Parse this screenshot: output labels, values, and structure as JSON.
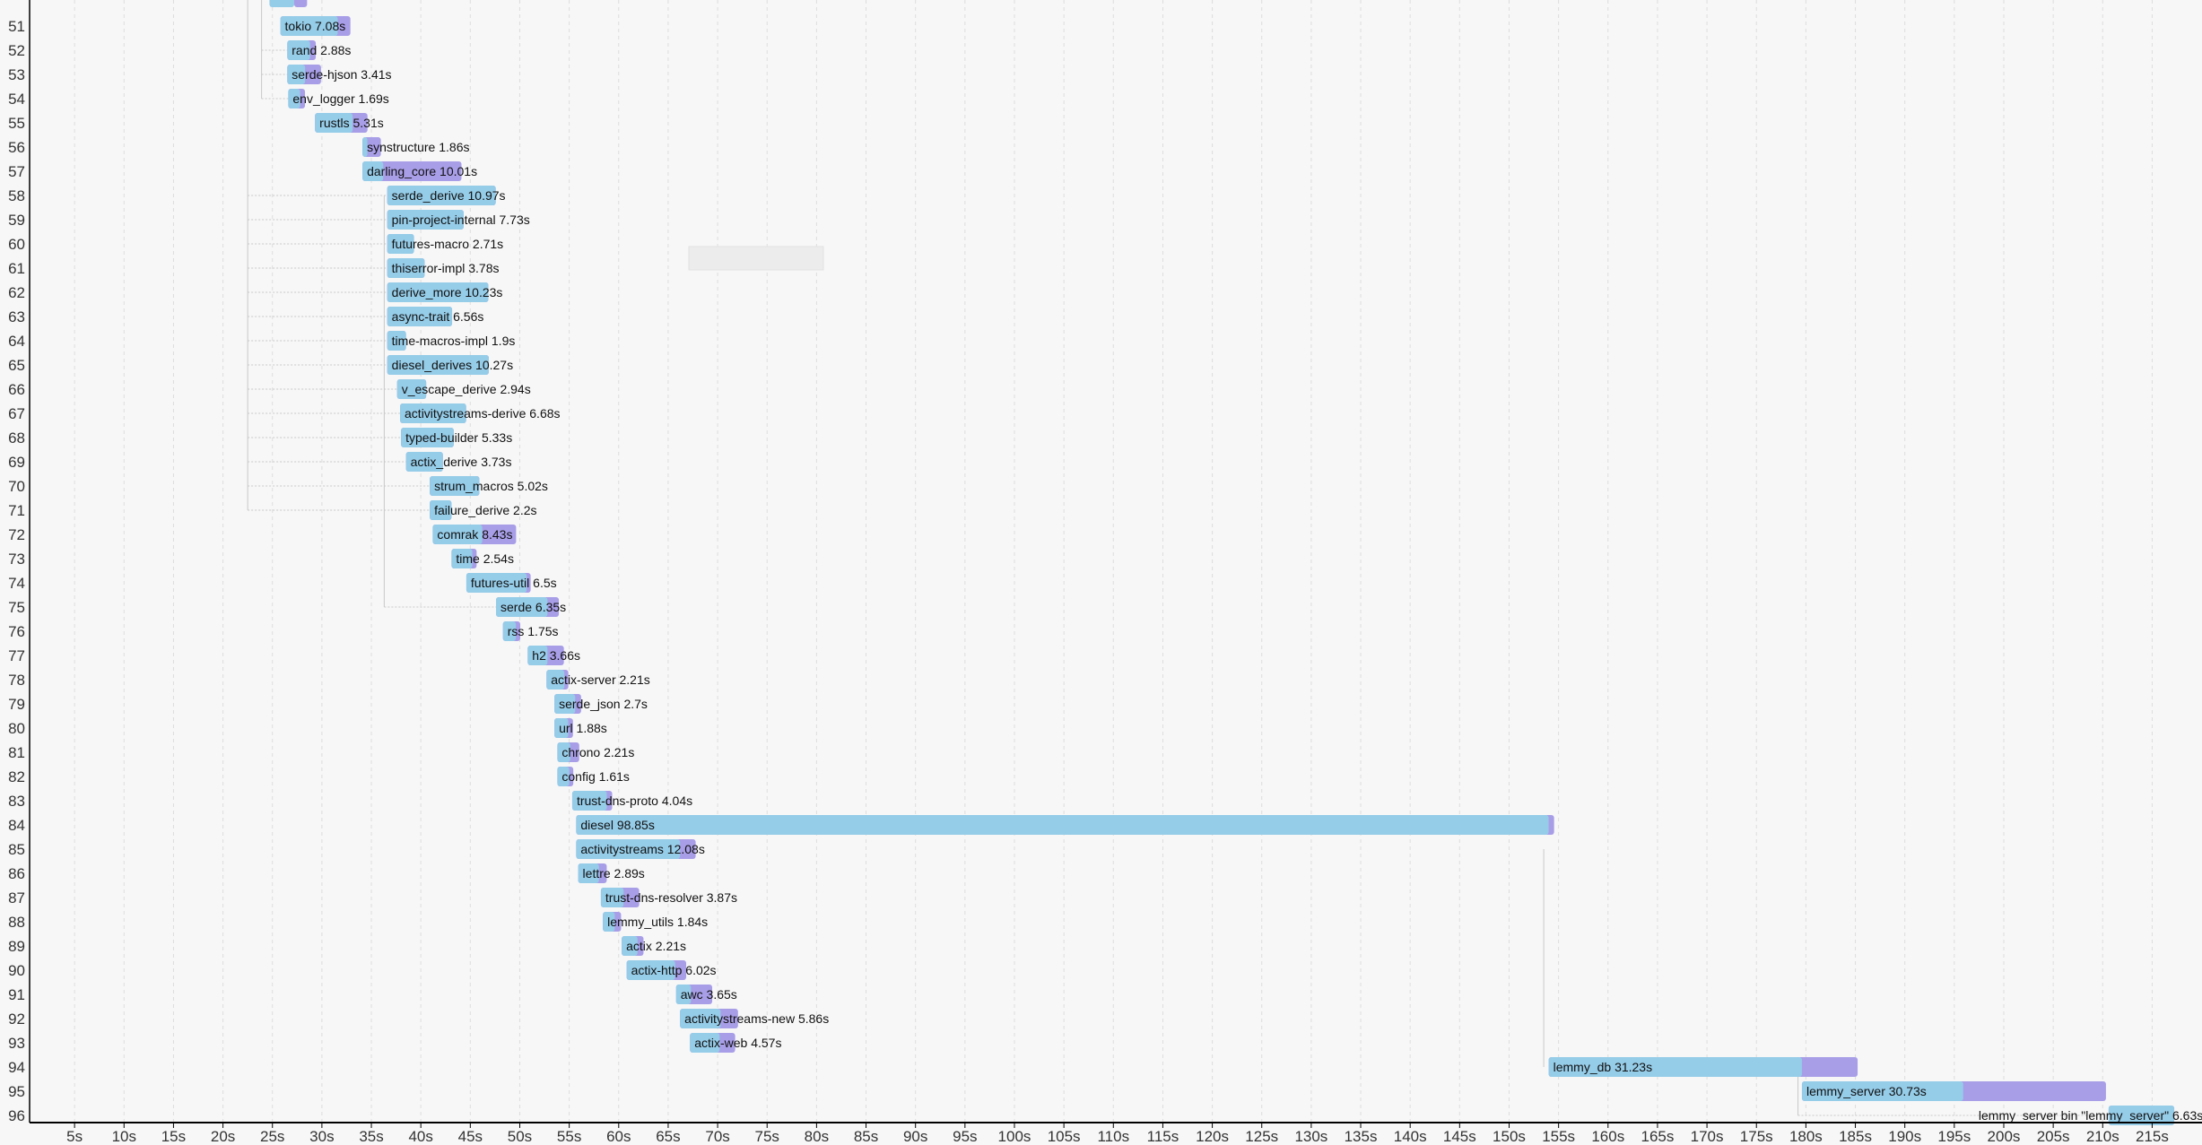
{
  "chart_data": {
    "type": "timeline",
    "title": "",
    "xlabel": "",
    "ylabel": "",
    "x_unit": "s",
    "xlim": [
      0,
      219
    ],
    "grid": true,
    "colors": {
      "codegen": "#95cce8",
      "frontend": "#a89ee8",
      "gridline": "#dddddd",
      "axis": "#000000",
      "dependency_line": "#c8c8c8"
    },
    "x_ticks": [
      5,
      10,
      15,
      20,
      25,
      30,
      35,
      40,
      45,
      50,
      55,
      60,
      65,
      70,
      75,
      80,
      85,
      90,
      95,
      100,
      105,
      110,
      115,
      120,
      125,
      130,
      135,
      140,
      145,
      150,
      155,
      160,
      165,
      170,
      175,
      180,
      185,
      190,
      195,
      200,
      205,
      210,
      215
    ],
    "x_tick_labels": [
      "5s",
      "10s",
      "15s",
      "20s",
      "25s",
      "30s",
      "35s",
      "40s",
      "45s",
      "50s",
      "55s",
      "60s",
      "65s",
      "70s",
      "75s",
      "80s",
      "85s",
      "90s",
      "95s",
      "100s",
      "105s",
      "110s",
      "115s",
      "120s",
      "125s",
      "130s",
      "135s",
      "140s",
      "145s",
      "150s",
      "155s",
      "160s",
      "165s",
      "170s",
      "175s",
      "180s",
      "185s",
      "190s",
      "195s",
      "200s",
      "205s",
      "210s",
      "215s"
    ],
    "partial_top_row": {
      "start": 24.7,
      "codegen_split": 27.2,
      "end": 28.5,
      "duration": 3.8
    },
    "units": [
      {
        "row": "51",
        "name": "tokio",
        "duration": 7.08,
        "label": "tokio 7.08s",
        "start": 25.8,
        "codegen_split": 31.6
      },
      {
        "row": "52",
        "name": "rand",
        "duration": 2.88,
        "label": "rand 2.88s",
        "start": 26.5,
        "codegen_split": 28.8
      },
      {
        "row": "53",
        "name": "serde-hjson",
        "duration": 3.41,
        "label": "serde-hjson 3.41s",
        "start": 26.5,
        "codegen_split": 28.3
      },
      {
        "row": "54",
        "name": "env_logger",
        "duration": 1.69,
        "label": "env_logger 1.69s",
        "start": 26.6,
        "codegen_split": 27.8
      },
      {
        "row": "55",
        "name": "rustls",
        "duration": 5.31,
        "label": "rustls 5.31s",
        "start": 29.3,
        "codegen_split": 33.1
      },
      {
        "row": "56",
        "name": "synstructure",
        "duration": 1.86,
        "label": "synstructure 1.86s",
        "start": 34.1,
        "codegen_split": 34.6
      },
      {
        "row": "57",
        "name": "darling_core",
        "duration": 10.01,
        "label": "darling_core 10.01s",
        "start": 34.1,
        "codegen_split": 36.2
      },
      {
        "row": "58",
        "name": "serde_derive",
        "duration": 10.97,
        "label": "serde_derive 10.97s",
        "start": 36.6,
        "codegen_split": 47.57
      },
      {
        "row": "59",
        "name": "pin-project-internal",
        "duration": 7.73,
        "label": "pin-project-internal 7.73s",
        "start": 36.6,
        "codegen_split": 44.33
      },
      {
        "row": "60",
        "name": "futures-macro",
        "duration": 2.71,
        "label": "futures-macro 2.71s",
        "start": 36.6,
        "codegen_split": 39.31
      },
      {
        "row": "61",
        "name": "thiserror-impl",
        "duration": 3.78,
        "label": "thiserror-impl 3.78s",
        "start": 36.6,
        "codegen_split": 40.38
      },
      {
        "row": "62",
        "name": "derive_more",
        "duration": 10.23,
        "label": "derive_more 10.23s",
        "start": 36.6,
        "codegen_split": 46.83
      },
      {
        "row": "63",
        "name": "async-trait",
        "duration": 6.56,
        "label": "async-trait 6.56s",
        "start": 36.6,
        "codegen_split": 43.16
      },
      {
        "row": "64",
        "name": "time-macros-impl",
        "duration": 1.9,
        "label": "time-macros-impl 1.9s",
        "start": 36.6,
        "codegen_split": 38.5
      },
      {
        "row": "65",
        "name": "diesel_derives",
        "duration": 10.27,
        "label": "diesel_derives 10.27s",
        "start": 36.6,
        "codegen_split": 46.87
      },
      {
        "row": "66",
        "name": "v_escape_derive",
        "duration": 2.94,
        "label": "v_escape_derive 2.94s",
        "start": 37.6,
        "codegen_split": 40.54
      },
      {
        "row": "67",
        "name": "activitystreams-derive",
        "duration": 6.68,
        "label": "activitystreams-derive 6.68s",
        "start": 37.9,
        "codegen_split": 44.58
      },
      {
        "row": "68",
        "name": "typed-builder",
        "duration": 5.33,
        "label": "typed-builder 5.33s",
        "start": 38.0,
        "codegen_split": 43.33
      },
      {
        "row": "69",
        "name": "actix_derive",
        "duration": 3.73,
        "label": "actix_derive 3.73s",
        "start": 38.5,
        "codegen_split": 42.23
      },
      {
        "row": "70",
        "name": "strum_macros",
        "duration": 5.02,
        "label": "strum_macros 5.02s",
        "start": 40.9,
        "codegen_split": 45.92
      },
      {
        "row": "71",
        "name": "failure_derive",
        "duration": 2.2,
        "label": "failure_derive 2.2s",
        "start": 40.9,
        "codegen_split": 43.1
      },
      {
        "row": "72",
        "name": "comrak",
        "duration": 8.43,
        "label": "comrak 8.43s",
        "start": 41.2,
        "codegen_split": 46.2
      },
      {
        "row": "73",
        "name": "time",
        "duration": 2.54,
        "label": "time 2.54s",
        "start": 43.1,
        "codegen_split": 45.2
      },
      {
        "row": "74",
        "name": "futures-util",
        "duration": 6.5,
        "label": "futures-util 6.5s",
        "start": 44.6,
        "codegen_split": 50.7
      },
      {
        "row": "75",
        "name": "serde",
        "duration": 6.35,
        "label": "serde 6.35s",
        "start": 47.6,
        "codegen_split": 52.8
      },
      {
        "row": "76",
        "name": "rss",
        "duration": 1.75,
        "label": "rss 1.75s",
        "start": 48.3,
        "codegen_split": 49.6
      },
      {
        "row": "77",
        "name": "h2",
        "duration": 3.66,
        "label": "h2 3.66s",
        "start": 50.8,
        "codegen_split": 52.8
      },
      {
        "row": "78",
        "name": "actix-server",
        "duration": 2.21,
        "label": "actix-server 2.21s",
        "start": 52.7,
        "codegen_split": 54.5
      },
      {
        "row": "79",
        "name": "serde_json",
        "duration": 2.7,
        "label": "serde_json 2.7s",
        "start": 53.5,
        "codegen_split": 55.6
      },
      {
        "row": "80",
        "name": "url",
        "duration": 1.88,
        "label": "url 1.88s",
        "start": 53.5,
        "codegen_split": 54.9
      },
      {
        "row": "81",
        "name": "chrono",
        "duration": 2.21,
        "label": "chrono 2.21s",
        "start": 53.8,
        "codegen_split": 55.1
      },
      {
        "row": "82",
        "name": "config",
        "duration": 1.61,
        "label": "config 1.61s",
        "start": 53.8,
        "codegen_split": 55.0
      },
      {
        "row": "83",
        "name": "trust-dns-proto",
        "duration": 4.04,
        "label": "trust-dns-proto 4.04s",
        "start": 55.3,
        "codegen_split": 58.8
      },
      {
        "row": "84",
        "name": "diesel",
        "duration": 98.85,
        "label": "diesel 98.85s",
        "start": 55.7,
        "codegen_split": 154.0
      },
      {
        "row": "85",
        "name": "activitystreams",
        "duration": 12.08,
        "label": "activitystreams 12.08s",
        "start": 55.7,
        "codegen_split": 66.2
      },
      {
        "row": "86",
        "name": "lettre",
        "duration": 2.89,
        "label": "lettre 2.89s",
        "start": 55.9,
        "codegen_split": 58.0
      },
      {
        "row": "87",
        "name": "trust-dns-resolver",
        "duration": 3.87,
        "label": "trust-dns-resolver 3.87s",
        "start": 58.2,
        "codegen_split": 60.5
      },
      {
        "row": "88",
        "name": "lemmy_utils",
        "duration": 1.84,
        "label": "lemmy_utils 1.84s",
        "start": 58.4,
        "codegen_split": 59.6
      },
      {
        "row": "89",
        "name": "actix",
        "duration": 2.21,
        "label": "actix 2.21s",
        "start": 60.3,
        "codegen_split": 61.9
      },
      {
        "row": "90",
        "name": "actix-http",
        "duration": 6.02,
        "label": "actix-http 6.02s",
        "start": 60.8,
        "codegen_split": 65.7
      },
      {
        "row": "91",
        "name": "awc",
        "duration": 3.65,
        "label": "awc 3.65s",
        "start": 65.8,
        "codegen_split": 67.3
      },
      {
        "row": "92",
        "name": "activitystreams-new",
        "duration": 5.86,
        "label": "activitystreams-new 5.86s",
        "start": 66.2,
        "codegen_split": 70.3
      },
      {
        "row": "93",
        "name": "actix-web",
        "duration": 4.57,
        "label": "actix-web 4.57s",
        "start": 67.2,
        "codegen_split": 70.2
      },
      {
        "row": "94",
        "name": "lemmy_db",
        "duration": 31.23,
        "label": "lemmy_db 31.23s",
        "start": 154.0,
        "codegen_split": 179.6
      },
      {
        "row": "95",
        "name": "lemmy_server",
        "duration": 30.73,
        "label": "lemmy_server 30.73s",
        "start": 179.6,
        "codegen_split": 195.9
      },
      {
        "row": "96",
        "name": "lemmy_server bin \"lemmy_server\"",
        "duration": 6.63,
        "label": "lemmy_server bin \"lemmy_server\" 6.63s",
        "start": 210.6,
        "codegen_split": 217.23,
        "label_left": true
      }
    ],
    "dependency_lines": [
      {
        "x": 22.5,
        "from_row": "51",
        "to_row": "71",
        "horizontal_to": [
          "58",
          "59",
          "60",
          "61",
          "62",
          "63",
          "64",
          "65",
          "66",
          "67",
          "68",
          "69",
          "70",
          "71"
        ]
      },
      {
        "x": 23.9,
        "from_row": "51",
        "to_row": "54",
        "horizontal_to": [
          "52",
          "53",
          "54"
        ]
      },
      {
        "x": 36.3,
        "from_row": "58",
        "to_row": "75",
        "horizontal_to": [
          "75"
        ]
      },
      {
        "x": 153.5,
        "from_row": "85",
        "to_row": "94",
        "horizontal_to": []
      },
      {
        "x": 179.2,
        "from_row": "94",
        "to_row": "96",
        "horizontal_to": [
          "96"
        ]
      }
    ]
  }
}
